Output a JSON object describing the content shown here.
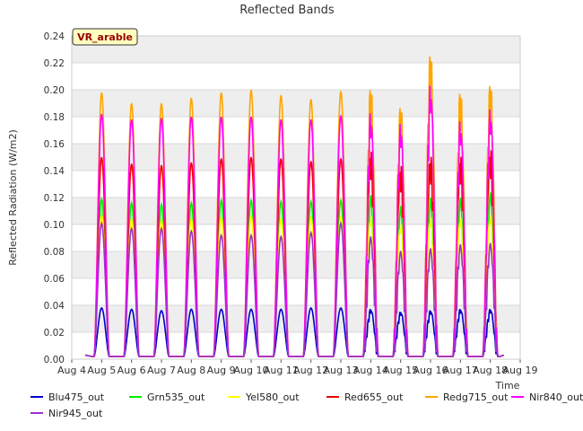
{
  "chart_data": {
    "type": "line",
    "title": "Reflected Bands",
    "xlabel": "Time",
    "ylabel": "Reflected Radiation (W/m2)",
    "badge": "VR_arable",
    "ylim": [
      0.0,
      0.24
    ],
    "yticks": [
      0.0,
      0.02,
      0.04,
      0.06,
      0.08,
      0.1,
      0.12,
      0.14,
      0.16,
      0.18,
      0.2,
      0.22,
      0.24
    ],
    "ytick_labels": [
      "0.00",
      "0.02",
      "0.04",
      "0.06",
      "0.08",
      "0.10",
      "0.12",
      "0.14",
      "0.16",
      "0.18",
      "0.20",
      "0.22",
      "0.24"
    ],
    "xtick_labels": [
      "Aug 4",
      "Aug 5",
      "Aug 6",
      "Aug 7",
      "Aug 8",
      "Aug 9",
      "Aug 10",
      "Aug 11",
      "Aug 12",
      "Aug 13",
      "Aug 14",
      "Aug 15",
      "Aug 16",
      "Aug 17",
      "Aug 18",
      "Aug 19"
    ],
    "x_days": [
      "Aug 5",
      "Aug 6",
      "Aug 7",
      "Aug 8",
      "Aug 9",
      "Aug 10",
      "Aug 11",
      "Aug 12",
      "Aug 13",
      "Aug 14",
      "Aug 15",
      "Aug 16",
      "Aug 17",
      "Aug 18"
    ],
    "grid": true,
    "legend_placement": "bottom",
    "series": [
      {
        "name": "Blu475_out",
        "color": "#0000cc",
        "daily_peak": [
          0.038,
          0.037,
          0.036,
          0.037,
          0.037,
          0.037,
          0.037,
          0.038,
          0.038,
          0.038,
          0.036,
          0.037,
          0.038,
          0.038
        ]
      },
      {
        "name": "Grn535_out",
        "color": "#00ee00",
        "daily_peak": [
          0.119,
          0.116,
          0.115,
          0.116,
          0.118,
          0.118,
          0.117,
          0.117,
          0.118,
          0.123,
          0.115,
          0.121,
          0.121,
          0.125
        ]
      },
      {
        "name": "Yel580_out",
        "color": "#ffff00",
        "daily_peak": [
          0.107,
          0.104,
          0.103,
          0.104,
          0.105,
          0.106,
          0.104,
          0.105,
          0.106,
          0.109,
          0.103,
          0.108,
          0.108,
          0.11
        ]
      },
      {
        "name": "Red655_out",
        "color": "#ee0000",
        "daily_peak": [
          0.15,
          0.145,
          0.144,
          0.146,
          0.149,
          0.15,
          0.149,
          0.147,
          0.149,
          0.159,
          0.148,
          0.155,
          0.155,
          0.16
        ]
      },
      {
        "name": "Redg715_out",
        "color": "#ffa500",
        "daily_peak": [
          0.198,
          0.19,
          0.19,
          0.194,
          0.198,
          0.2,
          0.196,
          0.193,
          0.199,
          0.208,
          0.194,
          0.234,
          0.205,
          0.211
        ]
      },
      {
        "name": "Nir840_out",
        "color": "#ff00ff",
        "daily_peak": [
          0.182,
          0.178,
          0.179,
          0.18,
          0.18,
          0.18,
          0.178,
          0.178,
          0.181,
          0.186,
          0.178,
          0.207,
          0.18,
          0.189
        ]
      },
      {
        "name": "Nir945_out",
        "color": "#9932cc",
        "daily_peak": [
          0.101,
          0.097,
          0.097,
          0.095,
          0.092,
          0.092,
          0.091,
          0.094,
          0.101,
          0.093,
          0.082,
          0.084,
          0.087,
          0.088
        ]
      }
    ]
  }
}
